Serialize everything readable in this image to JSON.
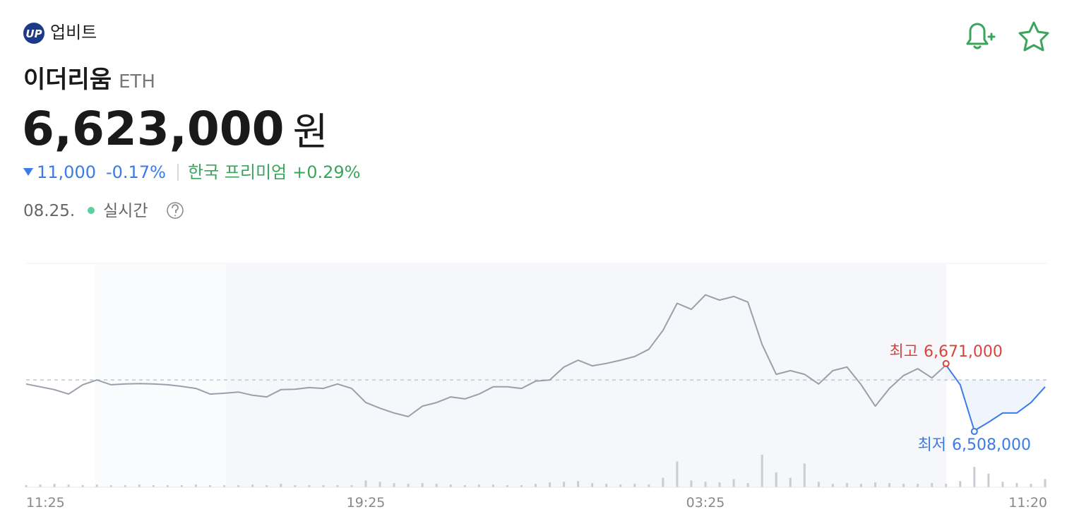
{
  "header": {
    "logo": "UP",
    "exchange": "업비트",
    "name": "이더리움",
    "symbol": "ETH",
    "price": "6,623,000",
    "currency": "원",
    "change": "11,000",
    "change_rate": "-0.17%",
    "premium_label": "한국 프리미엄",
    "premium": "+0.29%",
    "date": "08.25.",
    "status": "실시간"
  },
  "chart_data": {
    "type": "line",
    "categories": [
      "11:25",
      null,
      null,
      null,
      null,
      null,
      null,
      null,
      null,
      null,
      null,
      null,
      null,
      null,
      null,
      null,
      null,
      null,
      null,
      null,
      null,
      null,
      null,
      null,
      "19:25",
      null,
      null,
      null,
      null,
      null,
      null,
      null,
      null,
      null,
      null,
      null,
      null,
      null,
      null,
      null,
      null,
      null,
      null,
      null,
      null,
      null,
      null,
      null,
      "03:25",
      null,
      null,
      null,
      null,
      null,
      null,
      null,
      null,
      null,
      null,
      null,
      null,
      null,
      null,
      null,
      null,
      null,
      null,
      null,
      null,
      null,
      null,
      null,
      "11:20"
    ],
    "values": [
      6624000,
      6617000,
      6610000,
      6599000,
      6622000,
      6634000,
      6622000,
      6624000,
      6625000,
      6624000,
      6622000,
      6618000,
      6613000,
      6599000,
      6601000,
      6604000,
      6596000,
      6592000,
      6610000,
      6611000,
      6615000,
      6613000,
      6624000,
      6613000,
      6578000,
      6564000,
      6552000,
      6543000,
      6569000,
      6578000,
      6592000,
      6587000,
      6599000,
      6617000,
      6617000,
      6613000,
      6631000,
      6634000,
      6666000,
      6683000,
      6669000,
      6675000,
      6683000,
      6692000,
      6710000,
      6757000,
      6824000,
      6809000,
      6845000,
      6832000,
      6841000,
      6827000,
      6722000,
      6648000,
      6657000,
      6648000,
      6624000,
      6657000,
      6666000,
      6622000,
      6569000,
      6613000,
      6645000,
      6662000,
      6639000,
      6671000,
      6622000,
      6508000,
      6529000,
      6552000,
      6552000,
      6578000,
      6617000
    ],
    "volume": [
      3,
      4,
      5,
      4,
      3,
      4,
      3,
      3,
      4,
      3,
      3,
      3,
      4,
      3,
      3,
      3,
      4,
      3,
      5,
      3,
      3,
      3,
      3,
      3,
      10,
      8,
      6,
      5,
      6,
      5,
      4,
      3,
      4,
      4,
      3,
      3,
      5,
      7,
      8,
      9,
      6,
      5,
      4,
      5,
      4,
      14,
      38,
      10,
      8,
      7,
      12,
      6,
      48,
      22,
      14,
      35,
      8,
      5,
      6,
      5,
      7,
      6,
      5,
      5,
      6,
      5,
      9,
      30,
      20,
      8,
      6,
      5,
      12
    ],
    "color": "#9aa0ab",
    "recent_color": "#3b7be8",
    "volume_color": "#c9ccd2",
    "reference": 6634000,
    "high": {
      "label": "최고",
      "value": 6671000,
      "value_label": "6,671,000",
      "color": "#d9443a"
    },
    "low": {
      "label": "최저",
      "value": 6508000,
      "value_label": "6,508,000",
      "color": "#3b7be8"
    },
    "ylim": [
      6368000,
      6923000
    ]
  }
}
